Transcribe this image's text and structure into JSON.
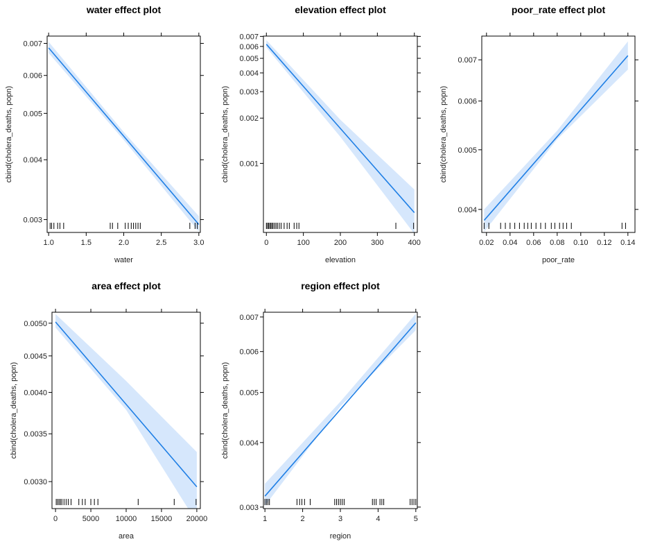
{
  "chart_data": [
    {
      "type": "line",
      "title": "water effect plot",
      "xlabel": "water",
      "ylabel": "cbind(cholera_deaths, popn)",
      "xlim": [
        0.98,
        3.02
      ],
      "ylim": [
        0.00282,
        0.00725
      ],
      "y_scale": "log",
      "x_ticks": [
        1.0,
        1.5,
        2.0,
        2.5,
        3.0
      ],
      "x_tick_labels": [
        "1.0",
        "1.5",
        "2.0",
        "2.5",
        "3.0"
      ],
      "y_ticks": [
        0.003,
        0.004,
        0.005,
        0.006,
        0.007
      ],
      "y_tick_labels": [
        "0.003",
        "0.004",
        "0.005",
        "0.006",
        "0.007"
      ],
      "fit": {
        "x": [
          1.0,
          3.0
        ],
        "y": [
          0.00685,
          0.00293
        ]
      },
      "band_lower": {
        "x": [
          1.0,
          2.0,
          3.0
        ],
        "y": [
          0.00668,
          0.0044,
          0.00283
        ]
      },
      "band_upper": {
        "x": [
          1.0,
          2.0,
          3.0
        ],
        "y": [
          0.00705,
          0.00457,
          0.00305
        ]
      },
      "rug": [
        1.02,
        1.04,
        1.07,
        1.12,
        1.15,
        1.2,
        1.82,
        1.85,
        1.92,
        2.02,
        2.06,
        2.1,
        2.13,
        2.16,
        2.19,
        2.22,
        2.88,
        2.95,
        2.98
      ]
    },
    {
      "type": "line",
      "title": "elevation effect plot",
      "xlabel": "elevation",
      "ylabel": "cbind(cholera_deaths, popn)",
      "xlim": [
        -8,
        408
      ],
      "ylim": [
        0.000347,
        0.00703
      ],
      "y_scale": "log",
      "x_ticks": [
        0,
        100,
        200,
        300,
        400
      ],
      "x_tick_labels": [
        "0",
        "100",
        "200",
        "300",
        "400"
      ],
      "y_ticks": [
        0.001,
        0.002,
        0.003,
        0.004,
        0.005,
        0.006,
        0.007
      ],
      "y_tick_labels": [
        "0.001",
        "0.002",
        "0.003",
        "0.004",
        "0.005",
        "0.006",
        "0.007"
      ],
      "fit": {
        "x": [
          0,
          400
        ],
        "y": [
          0.0062,
          0.00047
        ]
      },
      "band_lower": {
        "x": [
          0,
          200,
          400
        ],
        "y": [
          0.0059,
          0.0015,
          0.00034
        ]
      },
      "band_upper": {
        "x": [
          0,
          200,
          400
        ],
        "y": [
          0.0066,
          0.00195,
          0.00067
        ]
      },
      "rug": [
        0,
        3,
        6,
        9,
        12,
        15,
        18,
        22,
        26,
        30,
        35,
        40,
        48,
        56,
        62,
        75,
        82,
        88,
        350,
        398
      ]
    },
    {
      "type": "line",
      "title": "poor_rate effect plot",
      "xlabel": "poor_rate",
      "ylabel": "cbind(cholera_deaths, popn)",
      "xlim": [
        0.016,
        0.146
      ],
      "ylim": [
        0.00367,
        0.00765
      ],
      "y_scale": "log",
      "x_ticks": [
        0.02,
        0.04,
        0.06,
        0.08,
        0.1,
        0.12,
        0.14
      ],
      "x_tick_labels": [
        "0.02",
        "0.04",
        "0.06",
        "0.08",
        "0.10",
        "0.12",
        "0.14"
      ],
      "y_ticks": [
        0.004,
        0.005,
        0.006,
        0.007
      ],
      "y_tick_labels": [
        "0.004",
        "0.005",
        "0.006",
        "0.007"
      ],
      "fit": {
        "x": [
          0.018,
          0.14
        ],
        "y": [
          0.00384,
          0.00711
        ]
      },
      "band_lower": {
        "x": [
          0.018,
          0.08,
          0.14
        ],
        "y": [
          0.00368,
          0.0052,
          0.00675
        ]
      },
      "band_upper": {
        "x": [
          0.018,
          0.08,
          0.14
        ],
        "y": [
          0.004,
          0.00537,
          0.0075
        ]
      },
      "rug": [
        0.018,
        0.022,
        0.032,
        0.036,
        0.04,
        0.044,
        0.048,
        0.052,
        0.055,
        0.058,
        0.062,
        0.066,
        0.07,
        0.075,
        0.078,
        0.082,
        0.085,
        0.088,
        0.092,
        0.135,
        0.138
      ]
    },
    {
      "type": "line",
      "title": "area effect plot",
      "xlabel": "area",
      "ylabel": "cbind(cholera_deaths, popn)",
      "xlim": [
        -500,
        20500
      ],
      "ylim": [
        0.00275,
        0.00518
      ],
      "y_scale": "log",
      "x_ticks": [
        0,
        5000,
        10000,
        15000,
        20000
      ],
      "x_tick_labels": [
        "0",
        "5000",
        "10000",
        "15000",
        "20000"
      ],
      "y_ticks": [
        0.003,
        0.0035,
        0.004,
        0.0045,
        0.005
      ],
      "y_tick_labels": [
        "0.0030",
        "0.0035",
        "0.0040",
        "0.0045",
        "0.0050"
      ],
      "fit": {
        "x": [
          0,
          20000
        ],
        "y": [
          0.00502,
          0.00295
        ]
      },
      "band_lower": {
        "x": [
          0,
          10000,
          20000
        ],
        "y": [
          0.00493,
          0.00378,
          0.00263
        ]
      },
      "band_upper": {
        "x": [
          0,
          10000,
          20000
        ],
        "y": [
          0.00515,
          0.00415,
          0.0033
        ]
      },
      "rug": [
        100,
        300,
        500,
        700,
        900,
        1200,
        1500,
        1800,
        2200,
        3300,
        3800,
        4200,
        5000,
        5500,
        6000,
        11700,
        16800,
        19900
      ]
    },
    {
      "type": "line",
      "title": "region effect plot",
      "xlabel": "region",
      "ylabel": "cbind(cholera_deaths, popn)",
      "xlim": [
        0.96,
        5.04
      ],
      "ylim": [
        0.00298,
        0.00715
      ],
      "y_scale": "log",
      "x_ticks": [
        1,
        2,
        3,
        4,
        5
      ],
      "x_tick_labels": [
        "1",
        "2",
        "3",
        "4",
        "5"
      ],
      "y_ticks": [
        0.003,
        0.004,
        0.005,
        0.006,
        0.007
      ],
      "y_tick_labels": [
        "0.003",
        "0.004",
        "0.005",
        "0.006",
        "0.007"
      ],
      "fit": {
        "x": [
          1,
          5
        ],
        "y": [
          0.00315,
          0.00682
        ]
      },
      "band_lower": {
        "x": [
          1,
          3,
          5
        ],
        "y": [
          0.00302,
          0.0047,
          0.0066
        ]
      },
      "band_upper": {
        "x": [
          1,
          3,
          5
        ],
        "y": [
          0.00333,
          0.0048,
          0.0071
        ]
      },
      "rug": [
        1.0,
        1.04,
        1.08,
        1.12,
        1.85,
        1.92,
        1.98,
        2.05,
        2.2,
        2.85,
        2.9,
        2.95,
        3.0,
        3.05,
        3.1,
        3.85,
        3.9,
        3.95,
        4.05,
        4.1,
        4.15,
        4.85,
        4.9,
        4.95,
        5.0
      ]
    }
  ]
}
